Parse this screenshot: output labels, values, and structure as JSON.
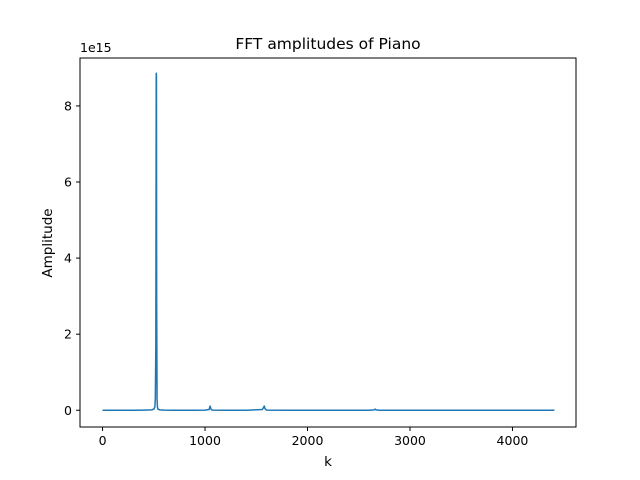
{
  "chart_data": {
    "type": "line",
    "title": "FFT amplitudes of Piano",
    "xlabel": "k",
    "ylabel": "Amplitude",
    "y_offset_label": "1e15",
    "xlim": [
      -220,
      4620
    ],
    "ylim": [
      -0.44,
      9.26
    ],
    "x_ticks": [
      0,
      1000,
      2000,
      3000,
      4000
    ],
    "x_tick_labels": [
      "0",
      "1000",
      "2000",
      "3000",
      "4000"
    ],
    "y_ticks": [
      0,
      2,
      4,
      6,
      8
    ],
    "y_tick_labels": [
      "0",
      "2",
      "4",
      "6",
      "8"
    ],
    "y_unit_multiplier": 1000000000000000.0,
    "grid": false,
    "legend": "none",
    "series": [
      {
        "color": "#1f77b4",
        "x": [
          0,
          100,
          200,
          300,
          400,
          480,
          500,
          510,
          515,
          520,
          524,
          526,
          528,
          532,
          536,
          540,
          560,
          600,
          700,
          800,
          900,
          1000,
          1040,
          1045,
          1050,
          1056,
          1060,
          1070,
          1200,
          1400,
          1560,
          1570,
          1578,
          1585,
          1600,
          1800,
          2000,
          2200,
          2400,
          2600,
          2650,
          2660,
          2670,
          2700,
          2900,
          3200,
          3600,
          4000,
          4410
        ],
        "values": [
          0.0,
          0.0,
          0.0,
          0.0,
          0.005,
          0.01,
          0.03,
          0.08,
          0.3,
          1.7,
          8.86,
          8.8,
          3.0,
          0.3,
          0.08,
          0.03,
          0.01,
          0.005,
          0.0,
          0.0,
          0.0,
          0.005,
          0.02,
          0.07,
          0.11,
          0.05,
          0.02,
          0.005,
          0.0,
          0.0,
          0.02,
          0.07,
          0.11,
          0.04,
          0.005,
          0.0,
          0.0,
          0.0,
          0.0,
          0.0,
          0.01,
          0.03,
          0.01,
          0.0,
          0.0,
          0.0,
          0.0,
          0.0,
          0.0
        ]
      }
    ]
  }
}
